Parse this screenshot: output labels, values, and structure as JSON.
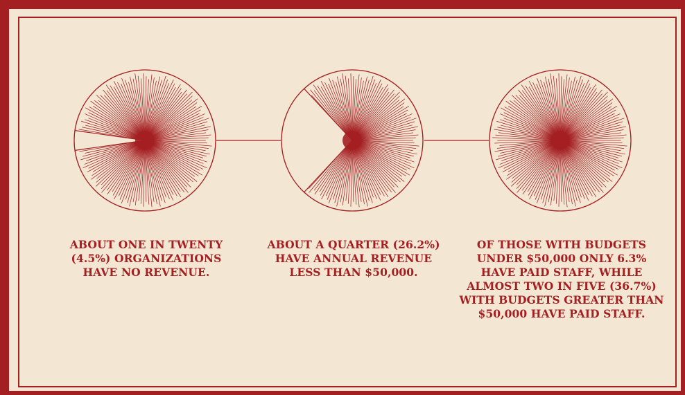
{
  "chart_data": {
    "type": "pie",
    "colors": {
      "accent": "#a41f22",
      "background": "#f3e6d3"
    },
    "charts": [
      {
        "value_percent": 4.5,
        "caption": "ABOUT ONE IN TWENTY (4.5%) ORGANIZATIONS HAVE NO REVENUE."
      },
      {
        "value_percent": 26.2,
        "caption": "ABOUT A QUARTER (26.2%) HAVE ANNUAL REVENUE LESS THAN $50,000."
      },
      {
        "value_percent": 0,
        "caption": "OF THOSE WITH BUDGETS UNDER $50,000 ONLY 6.3% HAVE PAID STAFF, WHILE ALMOST TWO IN FIVE (36.7%) WITH BUDGETS GREATER THAN $50,000 HAVE PAID STAFF."
      }
    ]
  }
}
